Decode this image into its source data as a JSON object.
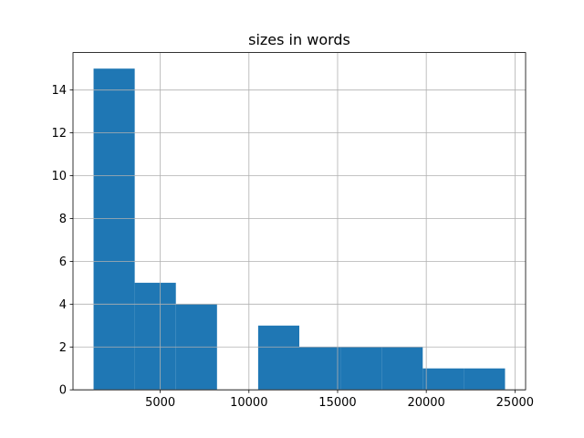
{
  "chart_data": {
    "type": "histogram",
    "title": "sizes in words",
    "bins": [
      1240,
      3560,
      5880,
      8200,
      10520,
      12840,
      15160,
      17480,
      19800,
      22120,
      24440
    ],
    "values": [
      15,
      5,
      4,
      0,
      3,
      2,
      2,
      2,
      1,
      1
    ],
    "color": "#1f77b4",
    "xlim": [
      80,
      25600
    ],
    "xticks": [
      5000,
      10000,
      15000,
      20000,
      25000
    ],
    "ylim": [
      0,
      15.75
    ],
    "yticks": [
      0,
      2,
      4,
      6,
      8,
      10,
      12,
      14
    ],
    "grid": true
  }
}
